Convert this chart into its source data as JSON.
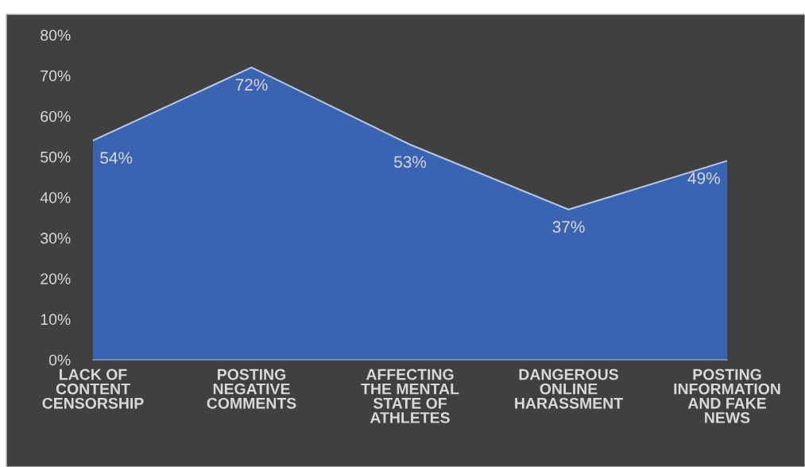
{
  "chart_data": {
    "type": "area",
    "categories": [
      "LACK OF CONTENT CENSORSHIP",
      "POSTING NEGATIVE COMMENTS",
      "AFFECTING THE MENTAL STATE OF ATHLETES",
      "DANGEROUS ONLINE HARASSMENT",
      "POSTING INFORMATION AND FAKE NEWS"
    ],
    "values": [
      54,
      72,
      53,
      37,
      49
    ],
    "value_labels": [
      "54%",
      "72%",
      "53%",
      "37%",
      "49%"
    ],
    "color": "#3a63b2",
    "ylim": [
      0,
      80
    ],
    "yticks": [
      {
        "value": 0,
        "label": "0%"
      },
      {
        "value": 10,
        "label": "10%"
      },
      {
        "value": 20,
        "label": "20%"
      },
      {
        "value": 30,
        "label": "30%"
      },
      {
        "value": 40,
        "label": "40%"
      },
      {
        "value": 50,
        "label": "50%"
      },
      {
        "value": 60,
        "label": "60%"
      },
      {
        "value": 70,
        "label": "70%"
      },
      {
        "value": 80,
        "label": "80%"
      }
    ],
    "grid": false,
    "legend": false
  }
}
